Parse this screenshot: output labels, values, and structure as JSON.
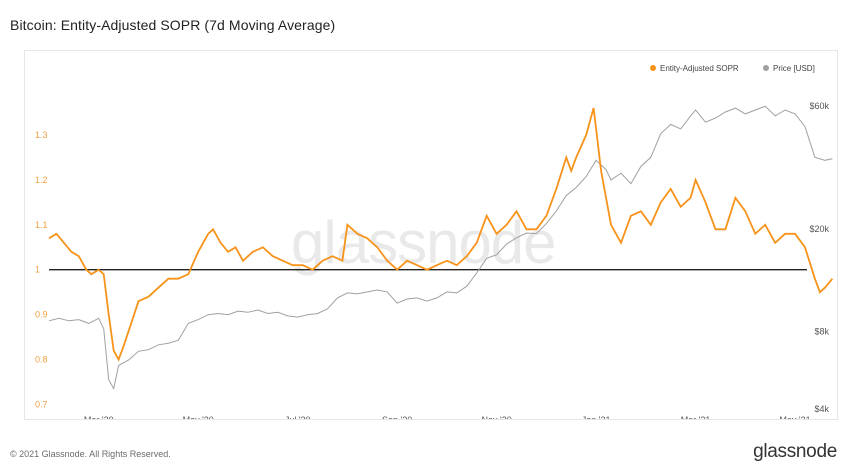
{
  "header": {
    "title": "Bitcoin: Entity-Adjusted SOPR (7d Moving Average)"
  },
  "footer": {
    "copyright": "© 2021 Glassnode. All Rights Reserved.",
    "brand": "glassnode"
  },
  "watermark": "glassnode",
  "colors": {
    "sopr": "#f7931a",
    "price": "#a0a0a0",
    "baseline": "#222222"
  },
  "chart_data": {
    "type": "line",
    "title": "Bitcoin: Entity-Adjusted SOPR (7d Moving Average)",
    "x_range": [
      0,
      15.2
    ],
    "x_ticks": [
      {
        "x": 1.0,
        "label": "Mar '20"
      },
      {
        "x": 3.0,
        "label": "May '20"
      },
      {
        "x": 5.0,
        "label": "Jul '20"
      },
      {
        "x": 7.0,
        "label": "Sep '20"
      },
      {
        "x": 9.0,
        "label": "Nov '20"
      },
      {
        "x": 11.0,
        "label": "Jan '21"
      },
      {
        "x": 13.0,
        "label": "Mar '21"
      },
      {
        "x": 15.0,
        "label": "May '21"
      }
    ],
    "y_left": {
      "label": "Entity-Adjusted SOPR",
      "range": [
        0.69,
        1.38
      ],
      "ticks": [
        "0.7",
        "0.8",
        "0.9",
        "1",
        "1.1",
        "1.2",
        "1.3"
      ],
      "baseline": 1.0
    },
    "y_right": {
      "label": "Price [USD]",
      "scale": "log",
      "range": [
        4000,
        64000
      ],
      "ticks": [
        {
          "value": 4000,
          "label": "$4k"
        },
        {
          "value": 8000,
          "label": "$8k"
        },
        {
          "value": 20000,
          "label": "$20k"
        },
        {
          "value": 60000,
          "label": "$60k"
        }
      ]
    },
    "legend": [
      "Entity-Adjusted SOPR",
      "Price [USD]"
    ],
    "series": [
      {
        "name": "Entity-Adjusted SOPR",
        "axis": "left",
        "points": [
          [
            0.0,
            1.07
          ],
          [
            0.15,
            1.08
          ],
          [
            0.3,
            1.06
          ],
          [
            0.45,
            1.04
          ],
          [
            0.6,
            1.03
          ],
          [
            0.75,
            1.0
          ],
          [
            0.85,
            0.99
          ],
          [
            1.0,
            1.0
          ],
          [
            1.1,
            0.99
          ],
          [
            1.2,
            0.9
          ],
          [
            1.3,
            0.82
          ],
          [
            1.4,
            0.8
          ],
          [
            1.5,
            0.83
          ],
          [
            1.65,
            0.88
          ],
          [
            1.8,
            0.93
          ],
          [
            2.0,
            0.94
          ],
          [
            2.2,
            0.96
          ],
          [
            2.4,
            0.98
          ],
          [
            2.6,
            0.98
          ],
          [
            2.8,
            0.99
          ],
          [
            3.0,
            1.04
          ],
          [
            3.2,
            1.08
          ],
          [
            3.3,
            1.09
          ],
          [
            3.45,
            1.06
          ],
          [
            3.6,
            1.04
          ],
          [
            3.75,
            1.05
          ],
          [
            3.9,
            1.02
          ],
          [
            4.1,
            1.04
          ],
          [
            4.3,
            1.05
          ],
          [
            4.5,
            1.03
          ],
          [
            4.7,
            1.02
          ],
          [
            4.9,
            1.01
          ],
          [
            5.1,
            1.01
          ],
          [
            5.3,
            1.0
          ],
          [
            5.5,
            1.02
          ],
          [
            5.7,
            1.03
          ],
          [
            5.9,
            1.02
          ],
          [
            6.0,
            1.1
          ],
          [
            6.2,
            1.08
          ],
          [
            6.4,
            1.07
          ],
          [
            6.6,
            1.05
          ],
          [
            6.8,
            1.02
          ],
          [
            7.0,
            1.0
          ],
          [
            7.2,
            1.02
          ],
          [
            7.4,
            1.01
          ],
          [
            7.6,
            1.0
          ],
          [
            7.8,
            1.01
          ],
          [
            8.0,
            1.02
          ],
          [
            8.2,
            1.01
          ],
          [
            8.4,
            1.03
          ],
          [
            8.6,
            1.06
          ],
          [
            8.8,
            1.12
          ],
          [
            9.0,
            1.08
          ],
          [
            9.2,
            1.1
          ],
          [
            9.4,
            1.13
          ],
          [
            9.6,
            1.09
          ],
          [
            9.8,
            1.09
          ],
          [
            10.0,
            1.12
          ],
          [
            10.2,
            1.18
          ],
          [
            10.4,
            1.25
          ],
          [
            10.5,
            1.22
          ],
          [
            10.6,
            1.25
          ],
          [
            10.8,
            1.3
          ],
          [
            10.95,
            1.36
          ],
          [
            11.1,
            1.22
          ],
          [
            11.3,
            1.1
          ],
          [
            11.5,
            1.06
          ],
          [
            11.7,
            1.12
          ],
          [
            11.9,
            1.13
          ],
          [
            12.1,
            1.1
          ],
          [
            12.3,
            1.15
          ],
          [
            12.5,
            1.18
          ],
          [
            12.7,
            1.14
          ],
          [
            12.9,
            1.16
          ],
          [
            13.0,
            1.2
          ],
          [
            13.2,
            1.15
          ],
          [
            13.4,
            1.09
          ],
          [
            13.6,
            1.09
          ],
          [
            13.8,
            1.16
          ],
          [
            14.0,
            1.13
          ],
          [
            14.2,
            1.08
          ],
          [
            14.4,
            1.1
          ],
          [
            14.6,
            1.06
          ],
          [
            14.8,
            1.08
          ],
          [
            15.0,
            1.08
          ],
          [
            15.2,
            1.05
          ],
          [
            15.4,
            0.98
          ],
          [
            15.5,
            0.95
          ],
          [
            15.6,
            0.96
          ],
          [
            15.75,
            0.98
          ]
        ]
      },
      {
        "name": "Price [USD]",
        "axis": "right",
        "points": [
          [
            0.0,
            8800
          ],
          [
            0.2,
            9000
          ],
          [
            0.4,
            8800
          ],
          [
            0.6,
            8900
          ],
          [
            0.8,
            8600
          ],
          [
            1.0,
            9000
          ],
          [
            1.1,
            8200
          ],
          [
            1.2,
            5200
          ],
          [
            1.3,
            4800
          ],
          [
            1.4,
            5900
          ],
          [
            1.6,
            6200
          ],
          [
            1.8,
            6700
          ],
          [
            2.0,
            6800
          ],
          [
            2.2,
            7100
          ],
          [
            2.4,
            7200
          ],
          [
            2.6,
            7400
          ],
          [
            2.8,
            8600
          ],
          [
            3.0,
            8900
          ],
          [
            3.2,
            9300
          ],
          [
            3.4,
            9400
          ],
          [
            3.6,
            9300
          ],
          [
            3.8,
            9600
          ],
          [
            4.0,
            9500
          ],
          [
            4.2,
            9700
          ],
          [
            4.4,
            9400
          ],
          [
            4.6,
            9500
          ],
          [
            4.8,
            9200
          ],
          [
            5.0,
            9100
          ],
          [
            5.2,
            9300
          ],
          [
            5.4,
            9400
          ],
          [
            5.6,
            9800
          ],
          [
            5.8,
            10800
          ],
          [
            6.0,
            11300
          ],
          [
            6.2,
            11200
          ],
          [
            6.4,
            11400
          ],
          [
            6.6,
            11600
          ],
          [
            6.8,
            11400
          ],
          [
            7.0,
            10300
          ],
          [
            7.2,
            10700
          ],
          [
            7.4,
            10800
          ],
          [
            7.6,
            10500
          ],
          [
            7.8,
            10800
          ],
          [
            8.0,
            11400
          ],
          [
            8.2,
            11300
          ],
          [
            8.4,
            12000
          ],
          [
            8.6,
            13500
          ],
          [
            8.8,
            15400
          ],
          [
            9.0,
            15900
          ],
          [
            9.2,
            17500
          ],
          [
            9.4,
            18500
          ],
          [
            9.6,
            19300
          ],
          [
            9.8,
            19200
          ],
          [
            10.0,
            21000
          ],
          [
            10.2,
            23500
          ],
          [
            10.4,
            27000
          ],
          [
            10.6,
            29000
          ],
          [
            10.8,
            32000
          ],
          [
            11.0,
            37000
          ],
          [
            11.2,
            34000
          ],
          [
            11.3,
            31000
          ],
          [
            11.5,
            33000
          ],
          [
            11.7,
            30000
          ],
          [
            11.9,
            35000
          ],
          [
            12.1,
            38000
          ],
          [
            12.3,
            47000
          ],
          [
            12.5,
            51000
          ],
          [
            12.7,
            49000
          ],
          [
            12.9,
            55000
          ],
          [
            13.0,
            58000
          ],
          [
            13.2,
            52000
          ],
          [
            13.4,
            54000
          ],
          [
            13.6,
            57000
          ],
          [
            13.8,
            59000
          ],
          [
            14.0,
            56000
          ],
          [
            14.2,
            58000
          ],
          [
            14.4,
            60000
          ],
          [
            14.6,
            55000
          ],
          [
            14.8,
            58000
          ],
          [
            15.0,
            56000
          ],
          [
            15.2,
            50000
          ],
          [
            15.4,
            38000
          ],
          [
            15.6,
            37000
          ],
          [
            15.75,
            37500
          ]
        ]
      }
    ]
  }
}
